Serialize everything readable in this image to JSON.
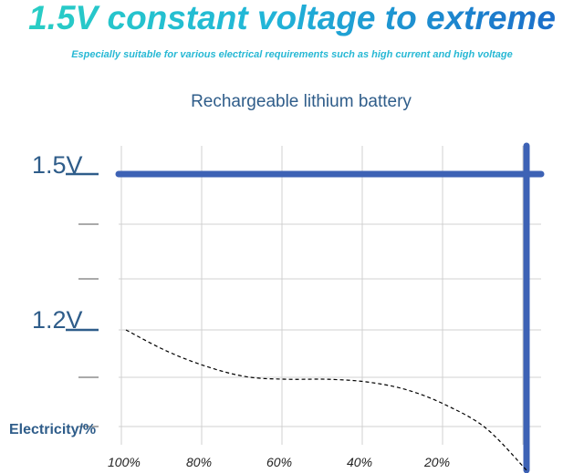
{
  "header": {
    "headline": "1.5V constant voltage to extreme",
    "subtitle": "Especially suitable for various electrical requirements such as high current and high voltage"
  },
  "chart_data": {
    "type": "line",
    "title": "Rechargeable lithium battery",
    "ylabel": "Electricity/%",
    "y_tick_labels": [
      "1.5V",
      "1.2V"
    ],
    "x_tick_labels": [
      "100%",
      "80%",
      "60%",
      "40%",
      "20%"
    ],
    "x_direction": "descending",
    "series": [
      {
        "style": "solid",
        "color": "#3d62b5",
        "points": [
          {
            "x": 100,
            "y": 1.5
          },
          {
            "x": 0,
            "y": 1.5
          },
          {
            "x": 0,
            "y": 0.93
          }
        ]
      },
      {
        "style": "dashed",
        "color": "#000000",
        "points": [
          {
            "x": 100,
            "y": 1.2
          },
          {
            "x": 90,
            "y": 1.16
          },
          {
            "x": 80,
            "y": 1.13
          },
          {
            "x": 70,
            "y": 1.11
          },
          {
            "x": 60,
            "y": 1.105
          },
          {
            "x": 50,
            "y": 1.105
          },
          {
            "x": 40,
            "y": 1.1
          },
          {
            "x": 30,
            "y": 1.085
          },
          {
            "x": 20,
            "y": 1.055
          },
          {
            "x": 10,
            "y": 1.01
          },
          {
            "x": 0,
            "y": 0.93
          }
        ]
      }
    ],
    "grid": true,
    "colors": {
      "axis_text": "#2f5d8a",
      "grid": "#d0d0d0",
      "accent": "#3d62b5"
    }
  }
}
